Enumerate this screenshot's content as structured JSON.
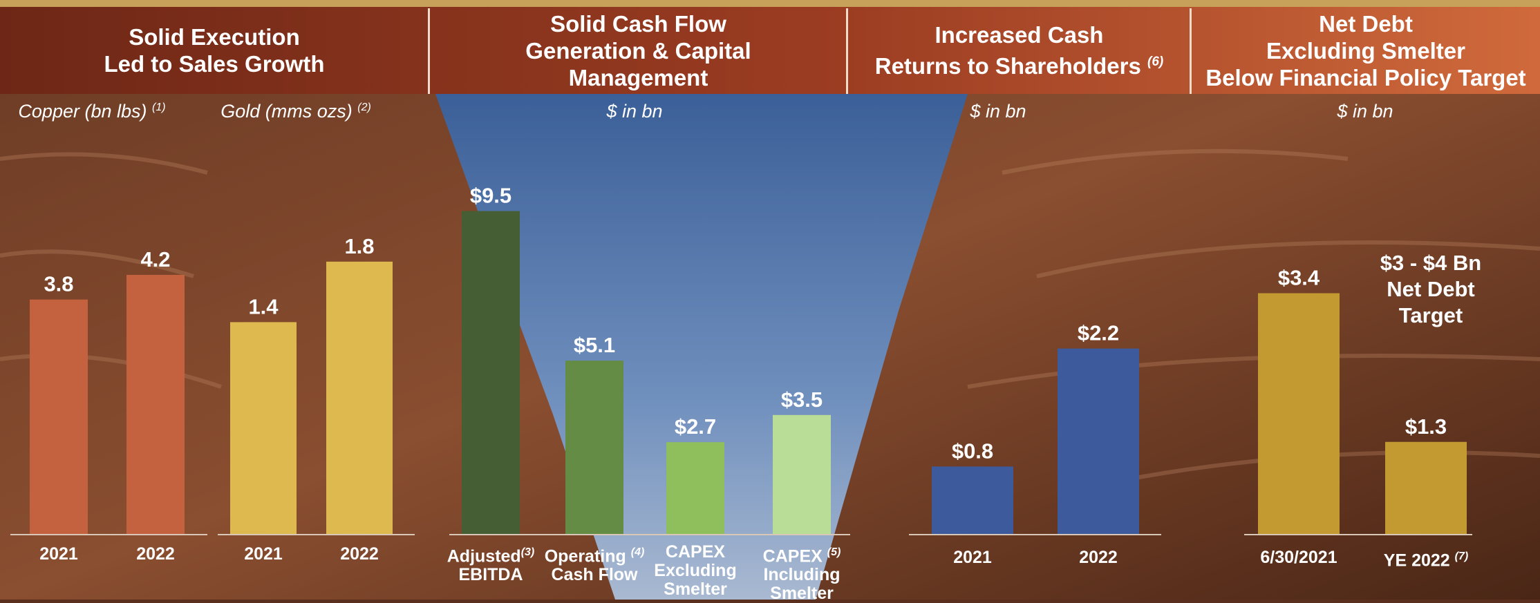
{
  "headers": [
    {
      "line1": "Solid Execution",
      "line2": "Led to Sales Growth",
      "line3": "",
      "sup": ""
    },
    {
      "line1": "Solid Cash Flow",
      "line2": "Generation & Capital",
      "line3": "Management",
      "sup": ""
    },
    {
      "line1": "Increased Cash",
      "line2": "Returns to Shareholders",
      "line3": "",
      "sup": "(6)"
    },
    {
      "line1": "Net Debt",
      "line2": "Excluding Smelter",
      "line3": "Below Financial Policy Target",
      "sup": ""
    }
  ],
  "units": [
    {
      "text": "Copper (bn lbs)",
      "sup": "(1)"
    },
    {
      "text": "Gold (mms ozs)",
      "sup": "(2)"
    },
    {
      "text": "$ in bn",
      "sup": ""
    },
    {
      "text": "$ in bn",
      "sup": ""
    },
    {
      "text": "$ in bn",
      "sup": ""
    }
  ],
  "target_label": {
    "line1": "$3 - $4 Bn",
    "line2": "Net Debt Target"
  },
  "colors": {
    "copper": "#c4623f",
    "gold": "#ddb94f",
    "ebitda": "#465e33",
    "ocf": "#648c45",
    "capex_ex": "#8fbe5c",
    "capex_in": "#b9dc97",
    "returns": "#3d5a9c",
    "netdebt": "#c39a32"
  },
  "chart_data": [
    {
      "type": "bar",
      "title": "Copper (bn lbs)",
      "categories": [
        "2021",
        "2022"
      ],
      "values": [
        3.8,
        4.2
      ],
      "labels": [
        "3.8",
        "4.2"
      ]
    },
    {
      "type": "bar",
      "title": "Gold (mms ozs)",
      "categories": [
        "2021",
        "2022"
      ],
      "values": [
        1.4,
        1.8
      ],
      "labels": [
        "1.4",
        "1.8"
      ]
    },
    {
      "type": "bar",
      "title": "$ in bn",
      "categories": [
        {
          "line1": "Adjusted",
          "line2": "EBITDA",
          "line3": "",
          "sup": "(3)"
        },
        {
          "line1": "Operating",
          "line2": "Cash Flow",
          "line3": "",
          "sup": "(4)"
        },
        {
          "line1": "CAPEX",
          "line2": "Excluding",
          "line3": "Smelter",
          "sup": ""
        },
        {
          "line1": "CAPEX",
          "line2": "Including",
          "line3": "Smelter",
          "sup": "(5)"
        }
      ],
      "values": [
        9.5,
        5.1,
        2.7,
        3.5
      ],
      "labels": [
        "$9.5",
        "$5.1",
        "$2.7",
        "$3.5"
      ]
    },
    {
      "type": "bar",
      "title": "$ in bn",
      "categories": [
        "2021",
        "2022"
      ],
      "values": [
        0.8,
        2.2
      ],
      "labels": [
        "$0.8",
        "$2.2"
      ]
    },
    {
      "type": "bar",
      "title": "$ in bn",
      "categories": [
        {
          "line1": "6/30/2021",
          "sup": ""
        },
        {
          "line1": "YE 2022",
          "sup": "(7)"
        }
      ],
      "values": [
        3.4,
        1.3
      ],
      "labels": [
        "$3.4",
        "$1.3"
      ]
    }
  ]
}
